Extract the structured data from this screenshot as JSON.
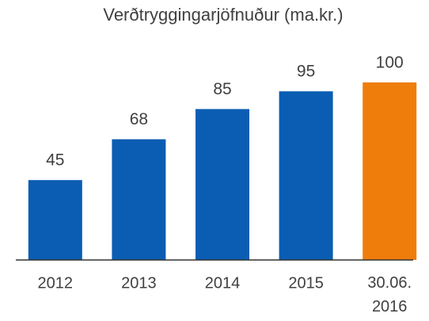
{
  "chart_data": {
    "type": "bar",
    "title": "Verðtryggingarjöfnuður (ma.kr.)",
    "categories": [
      "2012",
      "2013",
      "2014",
      "2015",
      "30.06.\n2016"
    ],
    "values": [
      45,
      68,
      85,
      95,
      100
    ],
    "colors": [
      "#0b5db3",
      "#0b5db3",
      "#0b5db3",
      "#0b5db3",
      "#ee7d0c"
    ]
  }
}
